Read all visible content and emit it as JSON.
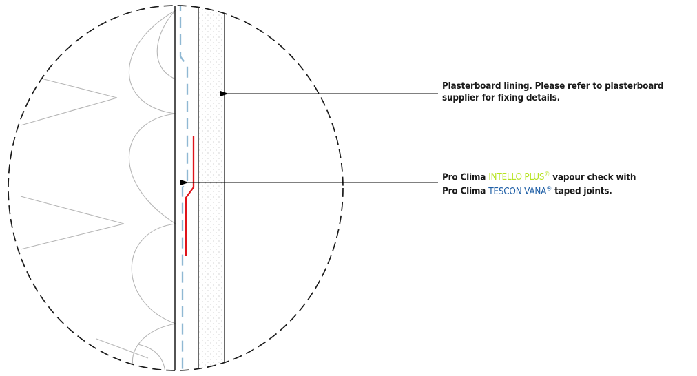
{
  "annotations": {
    "plasterboard": {
      "line1": "Plasterboard lining. Please refer to plasterboard",
      "line2": "supplier for fixing details."
    },
    "vapour": {
      "prefix1": "Pro Clima ",
      "product1": "INTELLO PLUS",
      "reg1": "®",
      "suffix1": " vapour check with",
      "prefix2": "Pro Clima ",
      "product2": "TESCON VANA",
      "reg2": "®",
      "suffix2": " taped joints."
    }
  },
  "colors": {
    "intello": "#b6e320",
    "tescon": "#1f5fa6",
    "tape": "#e0141b",
    "membrane": "#8fb8d3",
    "insulation": "#b5b5b5"
  }
}
